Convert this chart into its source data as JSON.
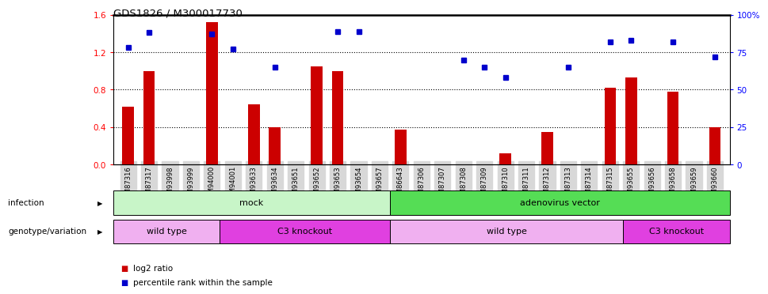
{
  "title": "GDS1826 / M300017730",
  "samples": [
    "GSM87316",
    "GSM87317",
    "GSM93998",
    "GSM93999",
    "GSM94000",
    "GSM94001",
    "GSM93633",
    "GSM93634",
    "GSM93651",
    "GSM93652",
    "GSM93653",
    "GSM93654",
    "GSM93657",
    "GSM86643",
    "GSM87306",
    "GSM87307",
    "GSM87308",
    "GSM87309",
    "GSM87310",
    "GSM87311",
    "GSM87312",
    "GSM87313",
    "GSM87314",
    "GSM87315",
    "GSM93655",
    "GSM93656",
    "GSM93658",
    "GSM93659",
    "GSM93660"
  ],
  "log2_ratio": [
    0.62,
    1.0,
    0.0,
    0.0,
    1.52,
    0.0,
    0.64,
    0.4,
    0.0,
    1.05,
    1.0,
    0.0,
    0.0,
    0.37,
    0.0,
    0.0,
    0.0,
    0.0,
    0.12,
    0.0,
    0.35,
    0.0,
    0.0,
    0.82,
    0.93,
    0.0,
    0.78,
    0.0,
    0.4
  ],
  "percentile": [
    78,
    88,
    0,
    0,
    87,
    77,
    0,
    65,
    0,
    0,
    89,
    89,
    0,
    0,
    0,
    0,
    70,
    65,
    58,
    0,
    0,
    65,
    0,
    82,
    83,
    0,
    82,
    0,
    72
  ],
  "infection_groups": [
    {
      "label": "mock",
      "start": 0,
      "end": 12,
      "color": "#c8f5c8"
    },
    {
      "label": "adenovirus vector",
      "start": 13,
      "end": 28,
      "color": "#55dd55"
    }
  ],
  "genotype_groups": [
    {
      "label": "wild type",
      "start": 0,
      "end": 4,
      "color": "#f0b0f0"
    },
    {
      "label": "C3 knockout",
      "start": 5,
      "end": 12,
      "color": "#e040e0"
    },
    {
      "label": "wild type",
      "start": 13,
      "end": 23,
      "color": "#f0b0f0"
    },
    {
      "label": "C3 knockout",
      "start": 24,
      "end": 28,
      "color": "#e040e0"
    }
  ],
  "ylim_left": [
    0,
    1.6
  ],
  "ylim_right": [
    0,
    100
  ],
  "bar_color": "#cc0000",
  "dot_color": "#0000cc",
  "left_ticks": [
    0,
    0.4,
    0.8,
    1.2,
    1.6
  ],
  "right_ticks": [
    0,
    25,
    50,
    75,
    100
  ],
  "infection_label": "infection",
  "genotype_label": "genotype/variation",
  "legend_log2": "log2 ratio",
  "legend_pct": "percentile rank within the sample",
  "tick_bg_color": "#d8d8d8"
}
